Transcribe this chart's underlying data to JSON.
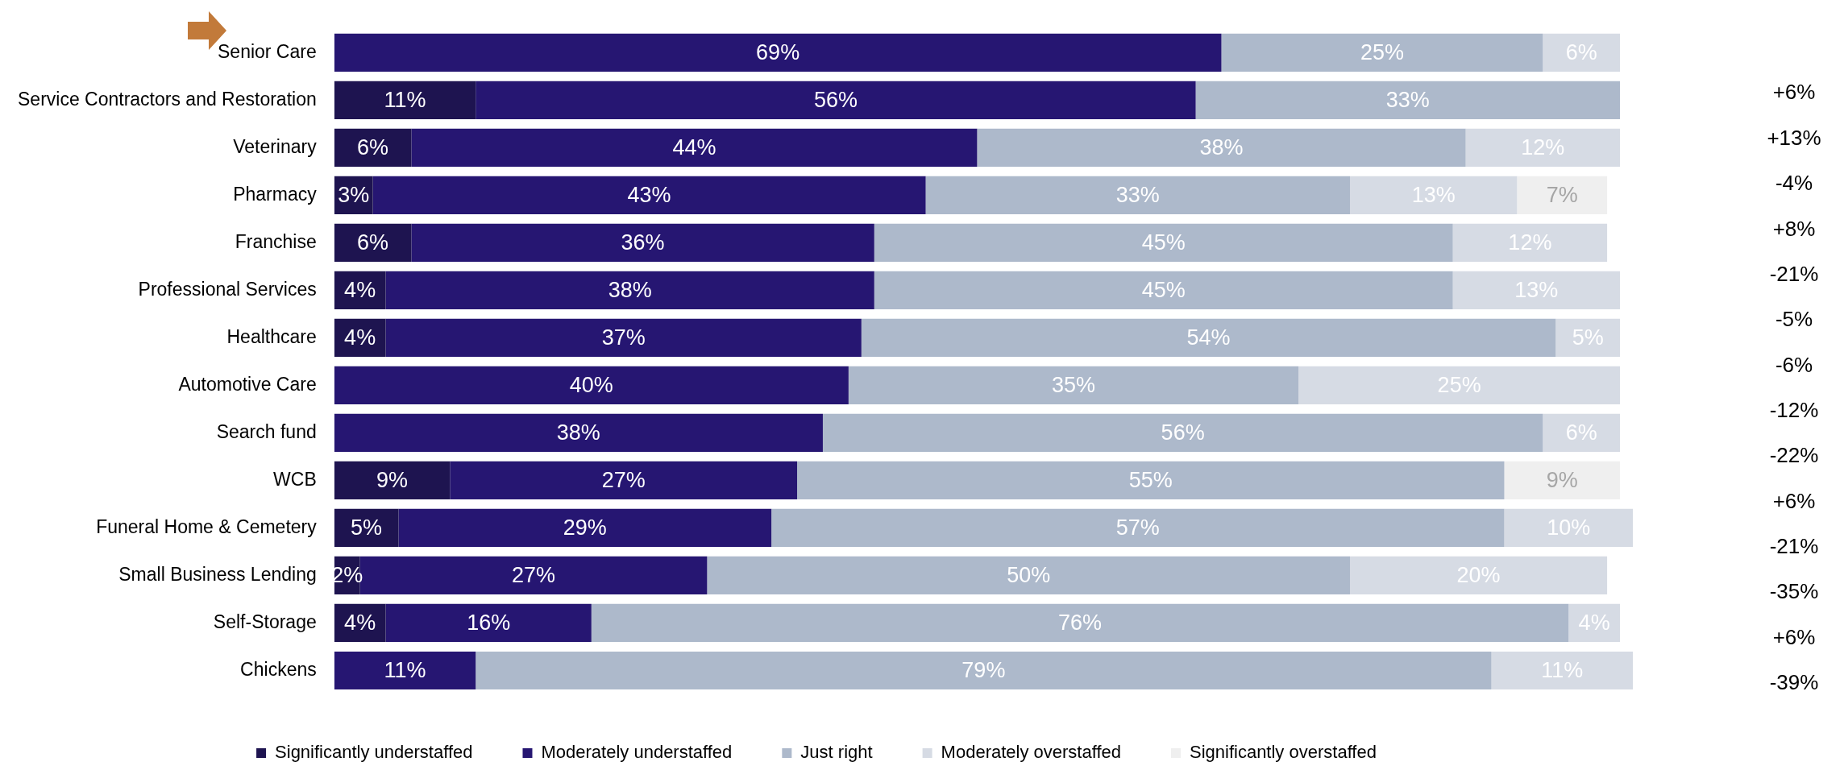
{
  "chart_data": {
    "type": "bar",
    "orientation": "horizontal",
    "stacked": true,
    "categories": [
      "Senior Care",
      "Service Contractors and Restoration",
      "Veterinary",
      "Pharmacy",
      "Franchise",
      "Professional Services",
      "Healthcare",
      "Automotive Care",
      "Search fund",
      "WCB",
      "Funeral Home & Cemetery",
      "Small Business Lending",
      "Self-Storage",
      "Chickens"
    ],
    "series": [
      {
        "name": "Significantly understaffed",
        "color": "#1e1450",
        "values": [
          null,
          11,
          6,
          3,
          6,
          4,
          4,
          null,
          null,
          9,
          5,
          2,
          4,
          null
        ],
        "value_labels": [
          null,
          "11%",
          "6%",
          "3%",
          "6%",
          "4%",
          "4%",
          null,
          null,
          "9%",
          "5%",
          "2%",
          "4%",
          null
        ]
      },
      {
        "name": "Moderately understaffed",
        "color": "#261672",
        "values": [
          69,
          56,
          44,
          43,
          36,
          38,
          37,
          40,
          38,
          27,
          29,
          27,
          16,
          11
        ],
        "value_labels": [
          "69%",
          "56%",
          "44%",
          "43%",
          "36%",
          "38%",
          "37%",
          "40%",
          "38%",
          "27%",
          "29%",
          "27%",
          "16%",
          "11%"
        ]
      },
      {
        "name": "Just right",
        "color": "#adb9cb",
        "values": [
          25,
          33,
          38,
          33,
          45,
          45,
          54,
          35,
          56,
          55,
          57,
          50,
          76,
          79
        ],
        "value_labels": [
          "25%",
          "33%",
          "38%",
          "33%",
          "45%",
          "45%",
          "54%",
          "35%",
          "56%",
          "55%",
          "57%",
          "50%",
          "76%",
          "79%"
        ]
      },
      {
        "name": "Moderately overstaffed",
        "color": "#d6dbe4",
        "values": [
          6,
          null,
          12,
          13,
          12,
          13,
          5,
          25,
          6,
          null,
          10,
          20,
          4,
          11
        ],
        "value_labels": [
          "6%",
          null,
          "12%",
          "13%",
          "12%",
          "13%",
          "5%",
          "25%",
          "6%",
          null,
          "10%",
          "20%",
          "4%",
          "11%"
        ]
      },
      {
        "name": "Significantly overstaffed",
        "color": "#efefef",
        "values": [
          null,
          null,
          null,
          7,
          null,
          null,
          null,
          null,
          null,
          9,
          null,
          null,
          null,
          null
        ],
        "value_labels": [
          null,
          null,
          null,
          "7%",
          null,
          null,
          null,
          null,
          null,
          "9%",
          null,
          null,
          null,
          null
        ]
      }
    ],
    "tick_labels": "y",
    "legend": "bottom",
    "annotations": [
      "+6%",
      "+13%",
      "-4%",
      "+8%",
      "-21%",
      "-5%",
      "-6%",
      "-12%",
      "-22%",
      "+6%",
      "-21%",
      "-35%",
      "+6%",
      "-39%"
    ]
  }
}
